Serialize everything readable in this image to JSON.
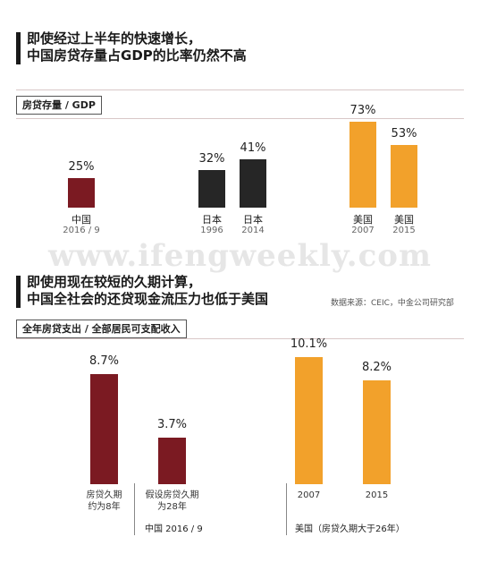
{
  "header1": {
    "line1": "即使经过上半年的快速增长，",
    "line2": "中国房贷存量占GDP的比率仍然不高"
  },
  "header2": {
    "line1": "即使用现在较短的久期计算，",
    "line2": "中国全社会的还贷现金流压力也低于美国"
  },
  "source": "数据来源：CEIC，中金公司研究部",
  "watermark": "www.ifengweekly.com",
  "colors": {
    "china": "#7b1a22",
    "japan": "#262626",
    "usa": "#f2a12b"
  },
  "chart_data": [
    {
      "type": "bar",
      "title": "房贷存量 / GDP",
      "ylim": [
        0,
        80
      ],
      "categories": [
        "中国 2016 / 9",
        "日本 1996",
        "日本 2014",
        "美国 2007",
        "美国 2015"
      ],
      "bars": [
        {
          "label": "中国",
          "sub": "2016 / 9",
          "value": 25,
          "display": "25%",
          "group": "china"
        },
        {
          "label": "日本",
          "sub": "1996",
          "value": 32,
          "display": "32%",
          "group": "japan"
        },
        {
          "label": "日本",
          "sub": "2014",
          "value": 41,
          "display": "41%",
          "group": "japan"
        },
        {
          "label": "美国",
          "sub": "2007",
          "value": 73,
          "display": "73%",
          "group": "usa"
        },
        {
          "label": "美国",
          "sub": "2015",
          "value": 53,
          "display": "53%",
          "group": "usa"
        }
      ]
    },
    {
      "type": "bar",
      "title": "全年房贷支出 / 全部居民可支配收入",
      "ylim": [
        0,
        11
      ],
      "categories": [
        "房贷久期约为8年",
        "假设房贷久期为28年",
        "2007",
        "2015"
      ],
      "bars": [
        {
          "label": "房贷久期\n约为8年",
          "value": 8.7,
          "display": "8.7%",
          "group": "china"
        },
        {
          "label": "假设房贷久期\n为28年",
          "value": 3.7,
          "display": "3.7%",
          "group": "china"
        },
        {
          "label": "2007",
          "value": 10.1,
          "display": "10.1%",
          "group": "usa"
        },
        {
          "label": "2015",
          "value": 8.2,
          "display": "8.2%",
          "group": "usa"
        }
      ],
      "group_labels": {
        "china": "中国 2016 / 9",
        "usa": "美国（房贷久期大于26年）"
      }
    }
  ]
}
